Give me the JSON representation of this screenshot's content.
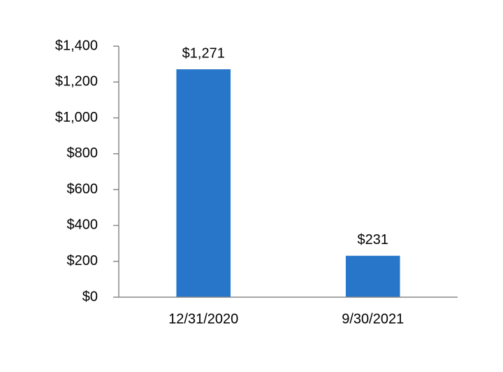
{
  "chart_data": {
    "type": "bar",
    "categories": [
      "12/31/2020",
      "9/30/2021"
    ],
    "values": [
      1271,
      231
    ],
    "value_labels": [
      "$1,271",
      "$231"
    ],
    "color": "#2876c9",
    "ylim": [
      0,
      1400
    ],
    "yticks": [
      {
        "value": 0,
        "label": "$0"
      },
      {
        "value": 200,
        "label": "$200"
      },
      {
        "value": 400,
        "label": "$400"
      },
      {
        "value": 600,
        "label": "$600"
      },
      {
        "value": 800,
        "label": "$800"
      },
      {
        "value": 1000,
        "label": "$1,000"
      },
      {
        "value": 1200,
        "label": "$1,200"
      },
      {
        "value": 1400,
        "label": "$1,400"
      }
    ],
    "grid": false
  }
}
